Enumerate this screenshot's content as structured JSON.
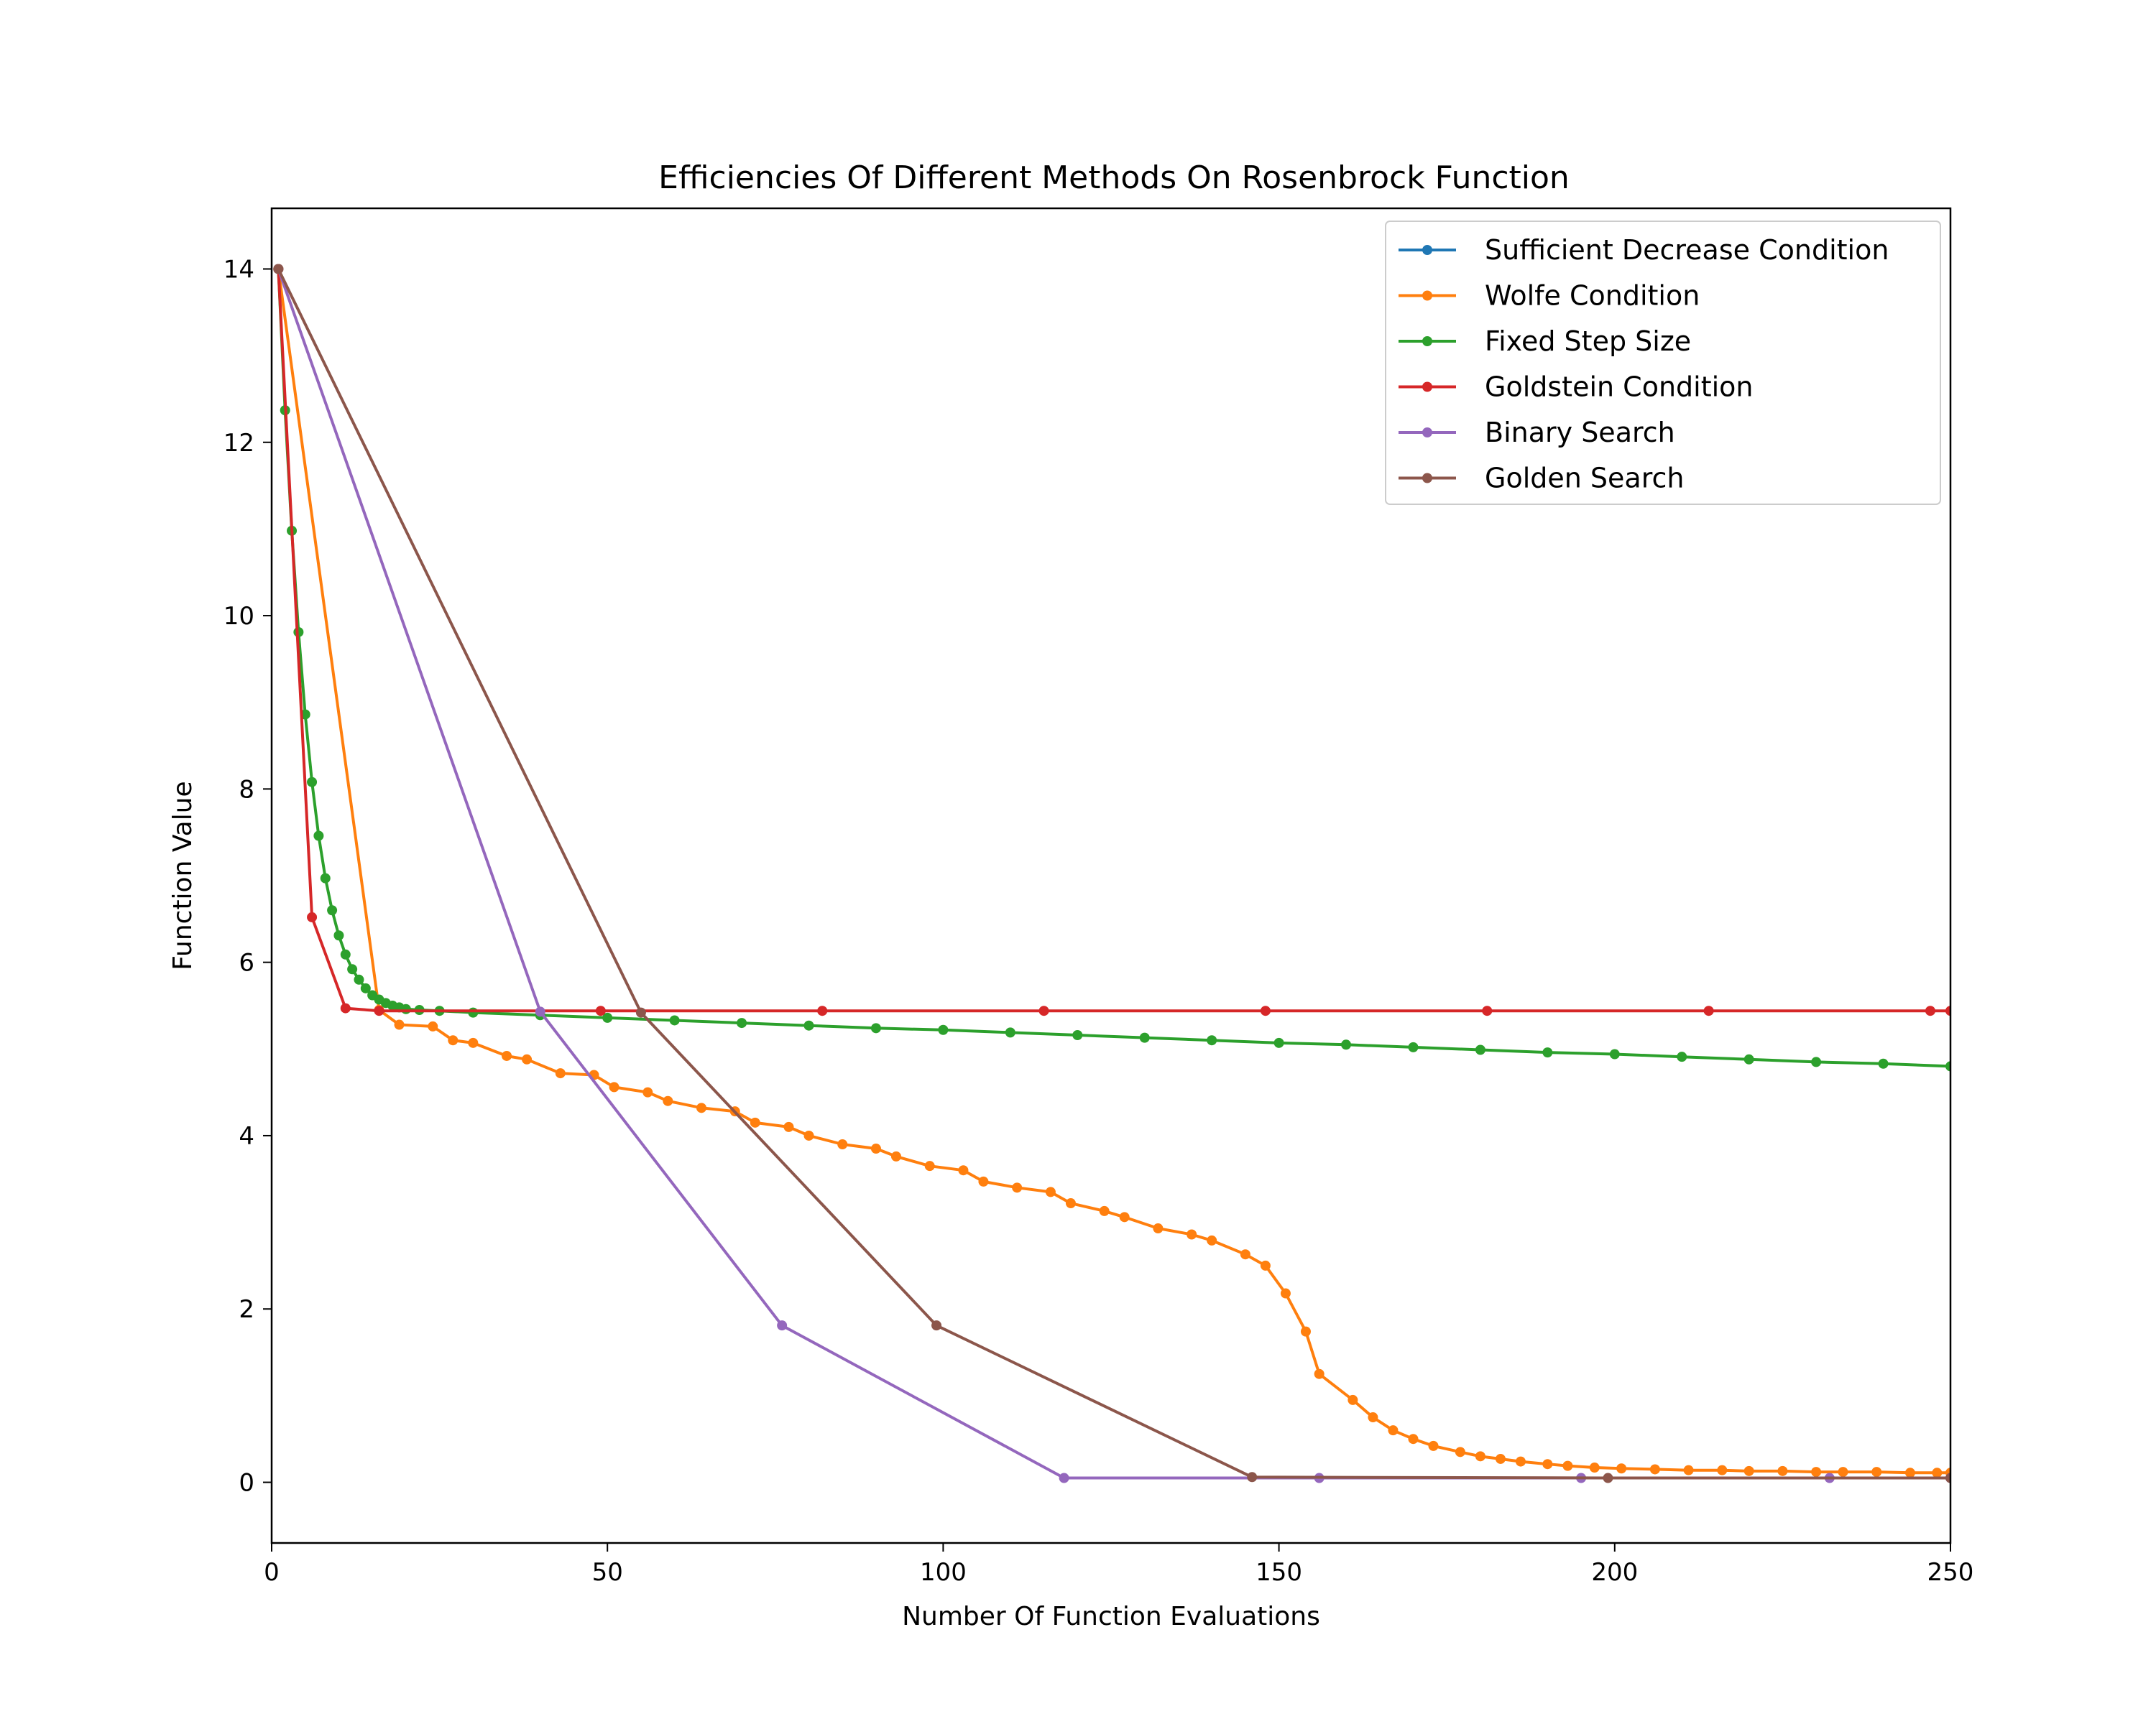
{
  "chart_data": {
    "type": "line",
    "title": "Efficiencies Of Different Methods On Rosenbrock Function",
    "xlabel": "Number Of Function Evaluations",
    "ylabel": "Function Value",
    "xlim": [
      0,
      250
    ],
    "ylim": [
      -0.7,
      14.7
    ],
    "xticks": [
      0,
      50,
      100,
      150,
      200,
      250
    ],
    "yticks": [
      0,
      2,
      4,
      6,
      8,
      10,
      12,
      14
    ],
    "grid": false,
    "legend_position": "top-right",
    "series": [
      {
        "name": "Sufficient Decrease Condition",
        "color": "#1f77b4",
        "x": [],
        "y": []
      },
      {
        "name": "Wolfe Condition",
        "color": "#ff7f0e",
        "x": [
          1,
          16,
          19,
          24,
          27,
          30,
          35,
          38,
          43,
          48,
          51,
          56,
          59,
          64,
          69,
          72,
          77,
          80,
          85,
          90,
          93,
          98,
          103,
          106,
          111,
          116,
          119,
          124,
          127,
          132,
          137,
          140,
          145,
          148,
          151,
          154,
          156,
          161,
          164,
          167,
          170,
          173,
          177,
          180,
          183,
          186,
          190,
          193,
          197,
          201,
          206,
          211,
          216,
          220,
          225,
          230,
          234,
          239,
          244,
          248,
          250
        ],
        "y": [
          14.0,
          5.45,
          5.28,
          5.26,
          5.1,
          5.07,
          4.92,
          4.88,
          4.72,
          4.7,
          4.56,
          4.5,
          4.4,
          4.32,
          4.28,
          4.15,
          4.1,
          4.0,
          3.9,
          3.85,
          3.76,
          3.65,
          3.6,
          3.47,
          3.4,
          3.35,
          3.22,
          3.13,
          3.06,
          2.93,
          2.86,
          2.79,
          2.63,
          2.5,
          2.18,
          1.74,
          1.25,
          0.95,
          0.75,
          0.6,
          0.5,
          0.42,
          0.35,
          0.3,
          0.27,
          0.24,
          0.21,
          0.19,
          0.17,
          0.16,
          0.15,
          0.14,
          0.14,
          0.13,
          0.13,
          0.12,
          0.12,
          0.12,
          0.11,
          0.11,
          0.11
        ]
      },
      {
        "name": "Fixed Step Size",
        "color": "#2ca02c",
        "x": [
          1,
          2,
          3,
          4,
          5,
          6,
          7,
          8,
          9,
          10,
          11,
          12,
          13,
          14,
          15,
          16,
          17,
          18,
          19,
          20,
          22,
          25,
          30,
          40,
          50,
          60,
          70,
          80,
          90,
          100,
          110,
          120,
          130,
          140,
          150,
          160,
          170,
          180,
          190,
          200,
          210,
          220,
          230,
          240,
          250
        ],
        "y": [
          14.0,
          12.37,
          10.98,
          9.81,
          8.86,
          8.08,
          7.46,
          6.97,
          6.6,
          6.31,
          6.09,
          5.92,
          5.8,
          5.7,
          5.62,
          5.57,
          5.53,
          5.5,
          5.48,
          5.46,
          5.45,
          5.44,
          5.42,
          5.39,
          5.36,
          5.33,
          5.3,
          5.27,
          5.24,
          5.22,
          5.19,
          5.16,
          5.13,
          5.1,
          5.07,
          5.05,
          5.02,
          4.99,
          4.96,
          4.94,
          4.91,
          4.88,
          4.85,
          4.83,
          4.8
        ]
      },
      {
        "name": "Goldstein Condition",
        "color": "#d62728",
        "x": [
          1,
          6,
          11,
          16,
          49,
          82,
          115,
          148,
          181,
          214,
          247,
          250
        ],
        "y": [
          14.0,
          6.52,
          5.47,
          5.44,
          5.44,
          5.44,
          5.44,
          5.44,
          5.44,
          5.44,
          5.44,
          5.44
        ]
      },
      {
        "name": "Binary Search",
        "color": "#9467bd",
        "x": [
          1,
          40,
          76,
          118,
          156,
          195,
          232,
          250
        ],
        "y": [
          14.0,
          5.43,
          1.81,
          0.05,
          0.05,
          0.05,
          0.05,
          0.05
        ]
      },
      {
        "name": "Golden Search",
        "color": "#8c564b",
        "x": [
          1,
          55,
          99,
          146,
          199,
          250
        ],
        "y": [
          14.0,
          5.42,
          1.81,
          0.06,
          0.05,
          0.05
        ]
      }
    ]
  }
}
